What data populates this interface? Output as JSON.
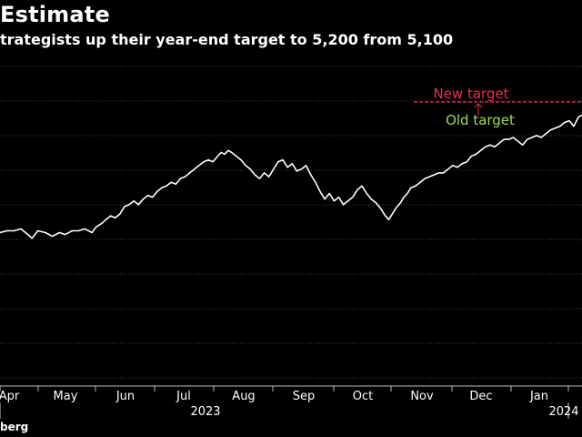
{
  "header": {
    "title": "Estimate",
    "subtitle": "trategists up their year-end target to 5,200 from 5,100"
  },
  "footer": {
    "source": "berg"
  },
  "colors": {
    "background": "#000000",
    "line": "#ffffff",
    "new_target": "#e8304a",
    "old_target": "#9be04a",
    "grid": "#444444"
  },
  "chart_data": {
    "type": "line",
    "title": "",
    "xlabel": "",
    "ylabel": "",
    "grid": true,
    "x_tick_labels": [
      "Apr",
      "May",
      "Jun",
      "Jul",
      "Aug",
      "Sep",
      "Oct",
      "Nov",
      "Dec",
      "Jan"
    ],
    "year_labels": [
      "2023",
      "2024"
    ],
    "y_range_rel": [
      0,
      1
    ],
    "series": [
      {
        "values": [
          [
            0.0,
            0.71
          ],
          [
            0.012,
            0.7
          ],
          [
            0.024,
            0.7
          ],
          [
            0.036,
            0.69
          ],
          [
            0.048,
            0.72
          ],
          [
            0.055,
            0.74
          ],
          [
            0.065,
            0.7
          ],
          [
            0.078,
            0.71
          ],
          [
            0.09,
            0.73
          ],
          [
            0.102,
            0.71
          ],
          [
            0.112,
            0.72
          ],
          [
            0.124,
            0.7
          ],
          [
            0.135,
            0.7
          ],
          [
            0.146,
            0.69
          ],
          [
            0.158,
            0.71
          ],
          [
            0.165,
            0.68
          ],
          [
            0.175,
            0.66
          ],
          [
            0.182,
            0.64
          ],
          [
            0.19,
            0.62
          ],
          [
            0.198,
            0.63
          ],
          [
            0.206,
            0.61
          ],
          [
            0.214,
            0.57
          ],
          [
            0.222,
            0.56
          ],
          [
            0.23,
            0.54
          ],
          [
            0.238,
            0.56
          ],
          [
            0.246,
            0.53
          ],
          [
            0.254,
            0.51
          ],
          [
            0.262,
            0.52
          ],
          [
            0.27,
            0.49
          ],
          [
            0.278,
            0.47
          ],
          [
            0.286,
            0.46
          ],
          [
            0.294,
            0.44
          ],
          [
            0.302,
            0.45
          ],
          [
            0.31,
            0.42
          ],
          [
            0.318,
            0.41
          ],
          [
            0.326,
            0.39
          ],
          [
            0.334,
            0.37
          ],
          [
            0.342,
            0.35
          ],
          [
            0.35,
            0.33
          ],
          [
            0.358,
            0.32
          ],
          [
            0.366,
            0.33
          ],
          [
            0.374,
            0.3
          ],
          [
            0.38,
            0.28
          ],
          [
            0.386,
            0.29
          ],
          [
            0.392,
            0.27
          ],
          [
            0.398,
            0.28
          ],
          [
            0.406,
            0.3
          ],
          [
            0.414,
            0.32
          ],
          [
            0.422,
            0.35
          ],
          [
            0.43,
            0.37
          ],
          [
            0.438,
            0.4
          ],
          [
            0.446,
            0.42
          ],
          [
            0.454,
            0.39
          ],
          [
            0.462,
            0.41
          ],
          [
            0.47,
            0.37
          ],
          [
            0.478,
            0.33
          ],
          [
            0.486,
            0.32
          ],
          [
            0.494,
            0.36
          ],
          [
            0.502,
            0.34
          ],
          [
            0.51,
            0.38
          ],
          [
            0.518,
            0.37
          ],
          [
            0.526,
            0.35
          ],
          [
            0.534,
            0.4
          ],
          [
            0.542,
            0.44
          ],
          [
            0.55,
            0.49
          ],
          [
            0.558,
            0.53
          ],
          [
            0.566,
            0.5
          ],
          [
            0.574,
            0.54
          ],
          [
            0.582,
            0.52
          ],
          [
            0.59,
            0.56
          ],
          [
            0.598,
            0.54
          ],
          [
            0.606,
            0.52
          ],
          [
            0.614,
            0.48
          ],
          [
            0.622,
            0.46
          ],
          [
            0.63,
            0.5
          ],
          [
            0.638,
            0.53
          ],
          [
            0.646,
            0.55
          ],
          [
            0.654,
            0.58
          ],
          [
            0.662,
            0.62
          ],
          [
            0.668,
            0.64
          ],
          [
            0.674,
            0.61
          ],
          [
            0.68,
            0.58
          ],
          [
            0.688,
            0.55
          ],
          [
            0.694,
            0.52
          ],
          [
            0.7,
            0.5
          ],
          [
            0.706,
            0.47
          ],
          [
            0.714,
            0.46
          ],
          [
            0.722,
            0.44
          ],
          [
            0.73,
            0.42
          ],
          [
            0.738,
            0.41
          ],
          [
            0.746,
            0.4
          ],
          [
            0.754,
            0.39
          ],
          [
            0.762,
            0.39
          ],
          [
            0.77,
            0.37
          ],
          [
            0.778,
            0.35
          ],
          [
            0.786,
            0.36
          ],
          [
            0.794,
            0.34
          ],
          [
            0.802,
            0.33
          ],
          [
            0.81,
            0.3
          ],
          [
            0.818,
            0.29
          ],
          [
            0.826,
            0.27
          ],
          [
            0.834,
            0.25
          ],
          [
            0.842,
            0.24
          ],
          [
            0.85,
            0.25
          ],
          [
            0.858,
            0.23
          ],
          [
            0.866,
            0.21
          ],
          [
            0.874,
            0.21
          ],
          [
            0.882,
            0.2
          ],
          [
            0.89,
            0.22
          ],
          [
            0.898,
            0.24
          ],
          [
            0.906,
            0.21
          ],
          [
            0.914,
            0.2
          ],
          [
            0.922,
            0.19
          ],
          [
            0.93,
            0.2
          ],
          [
            0.938,
            0.18
          ],
          [
            0.946,
            0.16
          ],
          [
            0.954,
            0.15
          ],
          [
            0.962,
            0.14
          ],
          [
            0.97,
            0.12
          ],
          [
            0.978,
            0.11
          ],
          [
            0.986,
            0.14
          ],
          [
            0.994,
            0.09
          ],
          [
            1.0,
            0.08
          ]
        ]
      }
    ],
    "annotations": [
      {
        "label": "New target",
        "color": "#e8304a",
        "value_rel": 0.0
      },
      {
        "label": "Old target",
        "color": "#9be04a"
      }
    ]
  }
}
